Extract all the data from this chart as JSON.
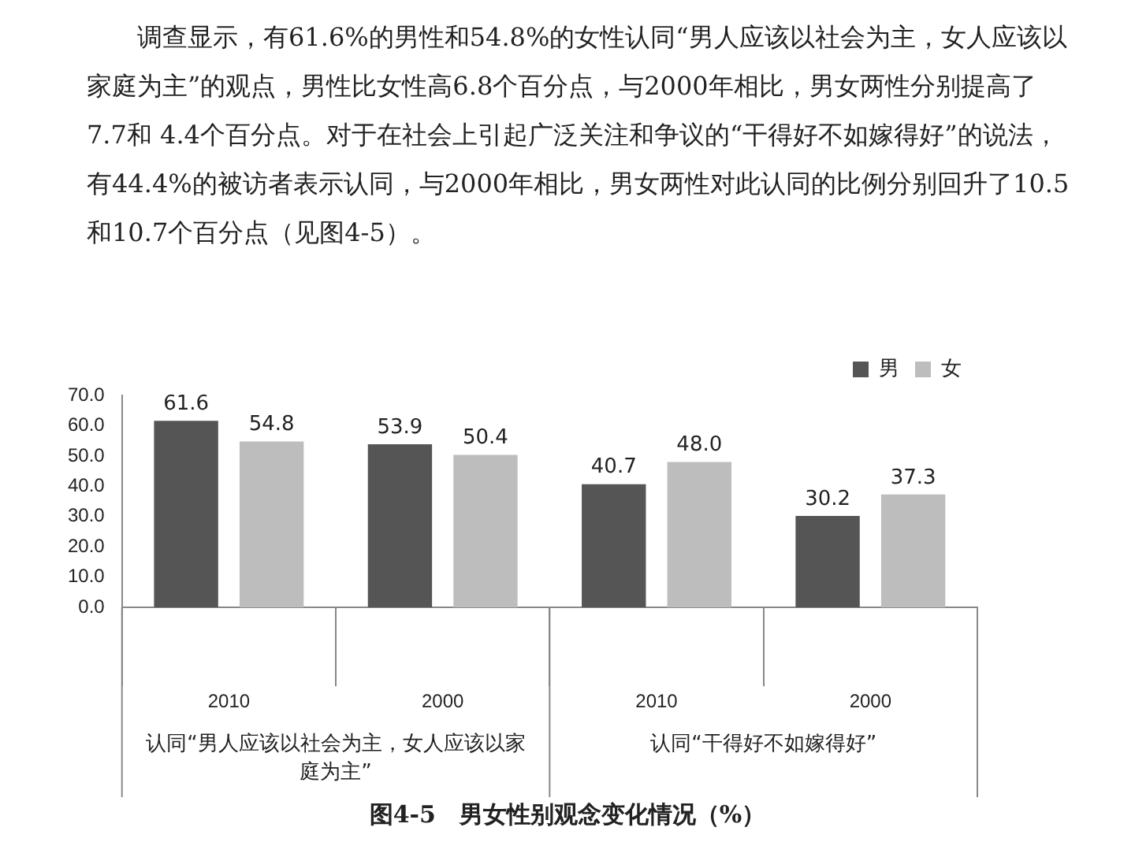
{
  "chart_data": {
    "type": "bar",
    "title": "图4-5　男女性别观念变化情况（%）",
    "subtitle": "调查显示，有61.6%的男性和54.8%的女性认同“男人应该以社会为主，女人应该以家庭为主”的观点，男性比女性高6.8个百分点，与2000年相比，男女两性分别提高了7.7和 4.4个百分点。对于在社会上引起广泛关注和争议的“干得好不如嫁得好”的说法，有44.4%的被访者表示认同，与2000年相比，男女两性对此认同的比例分别回升了10.5和10.7个百分点（见图4-5）。",
    "categories": [
      "2010",
      "2000",
      "2010",
      "2000"
    ],
    "series": [
      {
        "name": "男",
        "color": "#555555",
        "values": [
          61.6,
          53.9,
          40.7,
          30.2
        ],
        "value_labels": [
          "61.6",
          "53.9",
          "40.7",
          "30.2"
        ]
      },
      {
        "name": "女",
        "color": "#bdbdbd",
        "values": [
          54.8,
          50.4,
          48.0,
          37.3
        ],
        "value_labels": [
          "54.8",
          "50.4",
          "48.0",
          "37.3"
        ]
      }
    ],
    "annotations": [
      "认同“男人应该以社会为主，女人应该以家庭为主”",
      "认同“干得好不如嫁得好”"
    ],
    "ylim": [
      0,
      70
    ],
    "yticks": [
      {
        "value": 0,
        "label": "0.0"
      },
      {
        "value": 10,
        "label": "10.0"
      },
      {
        "value": 20,
        "label": "20.0"
      },
      {
        "value": 30,
        "label": "30.0"
      },
      {
        "value": 40,
        "label": "40.0"
      },
      {
        "value": 50,
        "label": "50.0"
      },
      {
        "value": 60,
        "label": "60.0"
      },
      {
        "value": 70,
        "label": "70.0"
      }
    ],
    "grid": false,
    "legend": "top right"
  }
}
